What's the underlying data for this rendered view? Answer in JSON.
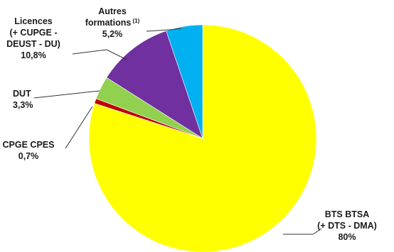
{
  "chart_data": {
    "type": "pie",
    "start_angle_deg": 0,
    "direction": "clockwise",
    "slices": [
      {
        "key": "bts",
        "label_lines": [
          "BTS BTSA",
          "(+ DTS - DMA)"
        ],
        "value_label": "80%",
        "value": 80,
        "color": "#FFFF00"
      },
      {
        "key": "cpge",
        "label_lines": [
          "CPGE CPES"
        ],
        "value_label": "0,7%",
        "value": 0.7,
        "color": "#C00000"
      },
      {
        "key": "dut",
        "label_lines": [
          "DUT"
        ],
        "value_label": "3,3%",
        "value": 3.3,
        "color": "#92D050"
      },
      {
        "key": "licences",
        "label_lines": [
          "Licences",
          "(+ CUPGE -",
          "DEUST - DU)"
        ],
        "value_label": "10,8%",
        "value": 10.8,
        "color": "#7030A0"
      },
      {
        "key": "autres",
        "label_lines": [
          "Autres",
          "formations"
        ],
        "superscript": "(1)",
        "value_label": "5,2%",
        "value": 5.2,
        "color": "#00B0F0"
      }
    ]
  }
}
